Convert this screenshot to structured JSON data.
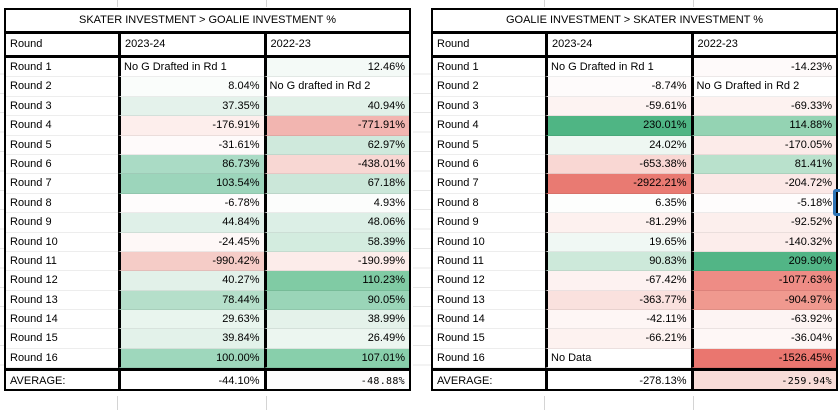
{
  "page": {
    "background": "#ffffff"
  },
  "selection_indicator": {
    "color": "#2e75b6"
  },
  "tables": [
    {
      "title": "SKATER INVESTMENT > GOALIE INVESTMENT %",
      "columns": [
        "Round",
        "2023-24",
        "2022-23"
      ],
      "rows": [
        {
          "label": "Round 1",
          "values": [
            {
              "text": "No G Drafted in Rd 1",
              "bg": "#ffffff",
              "align": "left"
            },
            {
              "text": "12.46%",
              "bg": "#f4faf7",
              "align": "right"
            }
          ]
        },
        {
          "label": "Round 2",
          "values": [
            {
              "text": "8.04%",
              "bg": "#fafdfb",
              "align": "right"
            },
            {
              "text": "No G drafted in Rd 2",
              "bg": "#ffffff",
              "align": "left"
            }
          ]
        },
        {
          "label": "Round 3",
          "values": [
            {
              "text": "37.35%",
              "bg": "#e4f2eb",
              "align": "right"
            },
            {
              "text": "40.94%",
              "bg": "#e1f1e8",
              "align": "right"
            }
          ]
        },
        {
          "label": "Round 4",
          "values": [
            {
              "text": "-176.91%",
              "bg": "#fdeeec",
              "align": "right"
            },
            {
              "text": "-771.91%",
              "bg": "#f2b5b0",
              "align": "right"
            }
          ]
        },
        {
          "label": "Round 5",
          "values": [
            {
              "text": "-31.61%",
              "bg": "#fefafa",
              "align": "right"
            },
            {
              "text": "62.97%",
              "bg": "#cfe9dc",
              "align": "right"
            }
          ]
        },
        {
          "label": "Round 6",
          "values": [
            {
              "text": "86.73%",
              "bg": "#aadbc5",
              "align": "right"
            },
            {
              "text": "-438.01%",
              "bg": "#f8d7d3",
              "align": "right"
            }
          ]
        },
        {
          "label": "Round 7",
          "values": [
            {
              "text": "103.54%",
              "bg": "#9cd5bb",
              "align": "right"
            },
            {
              "text": "67.18%",
              "bg": "#cbe7d9",
              "align": "right"
            }
          ]
        },
        {
          "label": "Round 8",
          "values": [
            {
              "text": "-6.78%",
              "bg": "#fefcfc",
              "align": "right"
            },
            {
              "text": "4.93%",
              "bg": "#fcfdfc",
              "align": "right"
            }
          ]
        },
        {
          "label": "Round 9",
          "values": [
            {
              "text": "44.84%",
              "bg": "#dff0e8",
              "align": "right"
            },
            {
              "text": "48.06%",
              "bg": "#dcefe6",
              "align": "right"
            }
          ]
        },
        {
          "label": "Round 10",
          "values": [
            {
              "text": "-24.45%",
              "bg": "#fef8f7",
              "align": "right"
            },
            {
              "text": "58.39%",
              "bg": "#d3ecdf",
              "align": "right"
            }
          ]
        },
        {
          "label": "Round 11",
          "values": [
            {
              "text": "-990.42%",
              "bg": "#f5ccc7",
              "align": "right"
            },
            {
              "text": "-190.99%",
              "bg": "#fcecea",
              "align": "right"
            }
          ]
        },
        {
          "label": "Round 12",
          "values": [
            {
              "text": "40.27%",
              "bg": "#e2f1e9",
              "align": "right"
            },
            {
              "text": "110.23%",
              "bg": "#80cba4",
              "align": "right"
            }
          ]
        },
        {
          "label": "Round 13",
          "values": [
            {
              "text": "78.44%",
              "bg": "#b5dfca",
              "align": "right"
            },
            {
              "text": "90.05%",
              "bg": "#9ad5b8",
              "align": "right"
            }
          ]
        },
        {
          "label": "Round 14",
          "values": [
            {
              "text": "29.63%",
              "bg": "#e9f5ee",
              "align": "right"
            },
            {
              "text": "38.99%",
              "bg": "#e4f2ea",
              "align": "right"
            }
          ]
        },
        {
          "label": "Round 15",
          "values": [
            {
              "text": "39.84%",
              "bg": "#e3f2ea",
              "align": "right"
            },
            {
              "text": "26.49%",
              "bg": "#ecf6f0",
              "align": "right"
            }
          ]
        },
        {
          "label": "Round 16",
          "values": [
            {
              "text": "100.00%",
              "bg": "#9ed7bc",
              "align": "right"
            },
            {
              "text": "107.01%",
              "bg": "#88cfab",
              "align": "right"
            }
          ]
        },
        {
          "label": "AVERAGE:",
          "is_average": true,
          "values": [
            {
              "text": "-44.10%",
              "bg": "#ffffff",
              "align": "right"
            },
            {
              "text": "-48.88%",
              "bg": "#fdfcfc",
              "align": "right"
            }
          ]
        }
      ]
    },
    {
      "title": "GOALIE INVESTMENT > SKATER INVESTMENT %",
      "columns": [
        "Round",
        "2023-24",
        "2022-23"
      ],
      "rows": [
        {
          "label": "Round 1",
          "values": [
            {
              "text": "No G Drafted in Rd 1",
              "bg": "#ffffff",
              "align": "left"
            },
            {
              "text": "-14.23%",
              "bg": "#fefafa",
              "align": "right"
            }
          ]
        },
        {
          "label": "Round 2",
          "values": [
            {
              "text": "-8.74%",
              "bg": "#fefbfb",
              "align": "right"
            },
            {
              "text": "No G Drafted in Rd 2",
              "bg": "#ffffff",
              "align": "left"
            }
          ]
        },
        {
          "label": "Round 3",
          "values": [
            {
              "text": "-59.61%",
              "bg": "#fdf3f2",
              "align": "right"
            },
            {
              "text": "-69.33%",
              "bg": "#fdf2f0",
              "align": "right"
            }
          ]
        },
        {
          "label": "Round 4",
          "values": [
            {
              "text": "230.01%",
              "bg": "#4fb584",
              "align": "right"
            },
            {
              "text": "114.88%",
              "bg": "#94d3b3",
              "align": "right"
            }
          ]
        },
        {
          "label": "Round 5",
          "values": [
            {
              "text": "24.02%",
              "bg": "#eef7f2",
              "align": "right"
            },
            {
              "text": "-170.05%",
              "bg": "#fcebe9",
              "align": "right"
            }
          ]
        },
        {
          "label": "Round 6",
          "values": [
            {
              "text": "-653.38%",
              "bg": "#f9d7d3",
              "align": "right"
            },
            {
              "text": "81.41%",
              "bg": "#b9e1cc",
              "align": "right"
            }
          ]
        },
        {
          "label": "Round 7",
          "values": [
            {
              "text": "-2922.21%",
              "bg": "#e97a72",
              "align": "right"
            },
            {
              "text": "-204.72%",
              "bg": "#fbe8e6",
              "align": "right"
            }
          ]
        },
        {
          "label": "Round 8",
          "values": [
            {
              "text": "6.35%",
              "bg": "#fdfefd",
              "align": "right"
            },
            {
              "text": "-5.18%",
              "bg": "#fefcfc",
              "align": "right"
            }
          ]
        },
        {
          "label": "Round 9",
          "values": [
            {
              "text": "-81.29%",
              "bg": "#fdf1ef",
              "align": "right"
            },
            {
              "text": "-92.52%",
              "bg": "#fcefed",
              "align": "right"
            }
          ]
        },
        {
          "label": "Round 10",
          "values": [
            {
              "text": "19.65%",
              "bg": "#f0f8f4",
              "align": "right"
            },
            {
              "text": "-140.32%",
              "bg": "#fcedeb",
              "align": "right"
            }
          ]
        },
        {
          "label": "Round 11",
          "values": [
            {
              "text": "90.83%",
              "bg": "#cde9da",
              "align": "right"
            },
            {
              "text": "209.90%",
              "bg": "#52b586",
              "align": "right"
            }
          ]
        },
        {
          "label": "Round 12",
          "values": [
            {
              "text": "-67.42%",
              "bg": "#fdf2f1",
              "align": "right"
            },
            {
              "text": "-1077.63%",
              "bg": "#ee8c85",
              "align": "right"
            }
          ]
        },
        {
          "label": "Round 13",
          "values": [
            {
              "text": "-363.77%",
              "bg": "#fae1de",
              "align": "right"
            },
            {
              "text": "-904.97%",
              "bg": "#f0998f",
              "align": "right"
            }
          ]
        },
        {
          "label": "Round 14",
          "values": [
            {
              "text": "-42.11%",
              "bg": "#fef6f5",
              "align": "right"
            },
            {
              "text": "-63.92%",
              "bg": "#fdf4f3",
              "align": "right"
            }
          ]
        },
        {
          "label": "Round 15",
          "values": [
            {
              "text": "-66.21%",
              "bg": "#fdf2f0",
              "align": "right"
            },
            {
              "text": "-36.04%",
              "bg": "#fef7f6",
              "align": "right"
            }
          ]
        },
        {
          "label": "Round 16",
          "values": [
            {
              "text": "No Data",
              "bg": "#ffffff",
              "align": "left"
            },
            {
              "text": "-1526.45%",
              "bg": "#ea766f",
              "align": "right"
            }
          ]
        },
        {
          "label": "AVERAGE:",
          "is_average": true,
          "values": [
            {
              "text": "-278.13%",
              "bg": "#ffffff",
              "align": "right"
            },
            {
              "text": "-259.94%",
              "bg": "#f8dcd8",
              "align": "right"
            }
          ]
        }
      ]
    }
  ]
}
